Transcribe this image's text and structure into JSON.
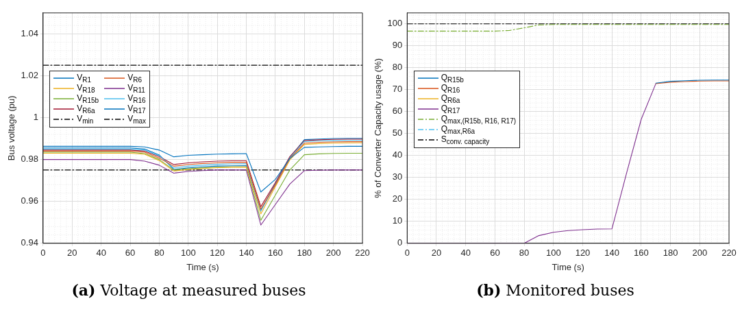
{
  "chart_data": [
    {
      "type": "line",
      "title": "(a) Voltage at measured buses",
      "xlabel": "Time (s)",
      "ylabel": "Bus voltage (pu)",
      "x": [
        0,
        10,
        20,
        30,
        40,
        50,
        60,
        70,
        80,
        90,
        100,
        110,
        120,
        130,
        140,
        150,
        160,
        170,
        180,
        190,
        200,
        210,
        220
      ],
      "xlim": [
        0,
        220
      ],
      "xticks": [
        0,
        20,
        40,
        60,
        80,
        100,
        120,
        140,
        160,
        180,
        200,
        220
      ],
      "ylim": [
        0.94,
        1.05
      ],
      "yticks": [
        0.94,
        0.96,
        0.98,
        1,
        1.02,
        1.04
      ],
      "grid": true,
      "legend": "left",
      "marker": "none",
      "series": [
        {
          "name": "V$_{R1}$",
          "color": "#0072bd",
          "values": [
            0.9863,
            0.9863,
            0.9863,
            0.9863,
            0.9863,
            0.9863,
            0.9863,
            0.986,
            0.9845,
            0.9813,
            0.982,
            0.9823,
            0.9826,
            0.9827,
            0.9828,
            0.9645,
            0.9705,
            0.9805,
            0.9858,
            0.986,
            0.9862,
            0.9863,
            0.9863
          ]
        },
        {
          "name": "V$_{R6}$",
          "color": "#d95319",
          "values": [
            0.984,
            0.984,
            0.984,
            0.984,
            0.984,
            0.984,
            0.984,
            0.9835,
            0.9807,
            0.9768,
            0.9776,
            0.9781,
            0.9784,
            0.9786,
            0.9786,
            0.9563,
            0.9678,
            0.9805,
            0.9878,
            0.9882,
            0.9884,
            0.9885,
            0.9885
          ]
        },
        {
          "name": "V$_{R18}$",
          "color": "#edb120",
          "values": [
            0.983,
            0.983,
            0.983,
            0.983,
            0.983,
            0.983,
            0.983,
            0.9825,
            0.9795,
            0.9745,
            0.9752,
            0.9757,
            0.9761,
            0.9763,
            0.9764,
            0.954,
            0.967,
            0.9798,
            0.9872,
            0.9876,
            0.9878,
            0.9879,
            0.988
          ]
        },
        {
          "name": "V$_{R11}$",
          "color": "#7e2f8e",
          "values": [
            0.98,
            0.98,
            0.98,
            0.98,
            0.98,
            0.98,
            0.98,
            0.9792,
            0.9773,
            0.9735,
            0.9743,
            0.9747,
            0.975,
            0.975,
            0.975,
            0.9487,
            0.9585,
            0.9683,
            0.9747,
            0.9749,
            0.975,
            0.975,
            0.975
          ]
        },
        {
          "name": "V$_{R15b}$",
          "color": "#77ac30",
          "values": [
            0.9835,
            0.9835,
            0.9835,
            0.9835,
            0.9835,
            0.9835,
            0.9835,
            0.9828,
            0.98,
            0.975,
            0.9756,
            0.976,
            0.9763,
            0.9765,
            0.9765,
            0.951,
            0.963,
            0.975,
            0.9823,
            0.9827,
            0.9829,
            0.983,
            0.983
          ]
        },
        {
          "name": "V$_{R16}$",
          "color": "#4dbeee",
          "values": [
            0.985,
            0.985,
            0.985,
            0.985,
            0.985,
            0.985,
            0.985,
            0.9845,
            0.9818,
            0.976,
            0.9768,
            0.9773,
            0.9777,
            0.9779,
            0.978,
            0.9553,
            0.968,
            0.9808,
            0.9886,
            0.9889,
            0.989,
            0.9891,
            0.9891
          ]
        },
        {
          "name": "V$_{R6a}$",
          "color": "#a2142f",
          "values": [
            0.9845,
            0.9845,
            0.9845,
            0.9845,
            0.9845,
            0.9845,
            0.9845,
            0.984,
            0.9814,
            0.9776,
            0.9784,
            0.9789,
            0.9792,
            0.9794,
            0.9794,
            0.9575,
            0.969,
            0.9814,
            0.989,
            0.9894,
            0.9896,
            0.9897,
            0.9897
          ]
        },
        {
          "name": "V$_{R17}$",
          "color": "#0072bd",
          "values": [
            0.9855,
            0.9855,
            0.9855,
            0.9855,
            0.9855,
            0.9855,
            0.9855,
            0.985,
            0.9822,
            0.9753,
            0.976,
            0.9765,
            0.9769,
            0.977,
            0.9771,
            0.9557,
            0.9685,
            0.981,
            0.9895,
            0.9898,
            0.99,
            0.9901,
            0.9901
          ]
        },
        {
          "name": "V$_{min}$",
          "color": "#000000",
          "line_style": "dashed",
          "values": [
            0.975,
            0.975,
            0.975,
            0.975,
            0.975,
            0.975,
            0.975,
            0.975,
            0.975,
            0.975,
            0.975,
            0.975,
            0.975,
            0.975,
            0.975,
            0.975,
            0.975,
            0.975,
            0.975,
            0.975,
            0.975,
            0.975,
            0.975
          ]
        },
        {
          "name": "V$_{max}$",
          "color": "#000000",
          "line_style": "dashed",
          "values": [
            1.025,
            1.025,
            1.025,
            1.025,
            1.025,
            1.025,
            1.025,
            1.025,
            1.025,
            1.025,
            1.025,
            1.025,
            1.025,
            1.025,
            1.025,
            1.025,
            1.025,
            1.025,
            1.025,
            1.025,
            1.025,
            1.025,
            1.025
          ]
        }
      ]
    },
    {
      "type": "line",
      "title": "(b) Monitored buses",
      "xlabel": "Time (s)",
      "ylabel": "% of Converter Capacity usage (%)",
      "x": [
        0,
        10,
        20,
        30,
        40,
        50,
        60,
        70,
        80,
        90,
        100,
        110,
        120,
        130,
        140,
        150,
        160,
        170,
        180,
        190,
        200,
        210,
        220
      ],
      "xlim": [
        0,
        220
      ],
      "xticks": [
        0,
        20,
        40,
        60,
        80,
        100,
        120,
        140,
        160,
        180,
        200,
        220
      ],
      "ylim": [
        0,
        105
      ],
      "yticks": [
        0,
        10,
        20,
        30,
        40,
        50,
        60,
        70,
        80,
        90,
        100
      ],
      "grid": true,
      "legend": "left",
      "marker": "none",
      "series": [
        {
          "name": "Q$_{R15b}$",
          "color": "#0072bd",
          "values": [
            null,
            null,
            null,
            null,
            null,
            null,
            null,
            null,
            null,
            null,
            null,
            null,
            null,
            null,
            null,
            null,
            null,
            73,
            73.8,
            74.1,
            74.3,
            74.4,
            74.4
          ]
        },
        {
          "name": "Q$_{R16}$",
          "color": "#d95319",
          "values": [
            null,
            null,
            null,
            null,
            null,
            null,
            null,
            null,
            null,
            null,
            null,
            null,
            null,
            null,
            null,
            null,
            null,
            72.8,
            73.4,
            73.7,
            73.9,
            74,
            74
          ]
        },
        {
          "name": "Q$_{R6a}$",
          "color": "#edb120",
          "values": [
            null,
            null,
            null,
            null,
            null,
            null,
            null,
            null,
            null,
            null,
            null,
            null,
            null,
            null,
            null,
            null,
            null,
            null,
            null,
            null,
            null,
            null,
            null
          ]
        },
        {
          "name": "Q$_{R17}$",
          "color": "#7e2f8e",
          "values": [
            0,
            0,
            0,
            0,
            0,
            0,
            0,
            0,
            0,
            3.5,
            5,
            5.8,
            6.2,
            6.5,
            6.6,
            32,
            56.5,
            72.8,
            null,
            null,
            null,
            null,
            null
          ]
        },
        {
          "name": "Q$_{max,(R15b, R16, R17)}$",
          "color": "#77ac30",
          "line_style": "dashed",
          "values": [
            96.7,
            96.7,
            96.7,
            96.7,
            96.7,
            96.7,
            96.7,
            97,
            98.2,
            99.5,
            99.7,
            99.7,
            99.7,
            99.7,
            99.7,
            99.7,
            99.7,
            99.7,
            99.7,
            99.7,
            99.7,
            99.7,
            99.7
          ]
        },
        {
          "name": "Q$_{max,R6a}$",
          "color": "#4dbeee",
          "line_style": "dashed",
          "values": [
            null,
            null,
            null,
            null,
            null,
            null,
            null,
            null,
            null,
            null,
            null,
            null,
            null,
            null,
            null,
            null,
            null,
            null,
            null,
            null,
            null,
            null,
            null
          ]
        },
        {
          "name": "S$_{conv. capacity}$",
          "color": "#000000",
          "line_style": "dashed",
          "values": [
            100,
            100,
            100,
            100,
            100,
            100,
            100,
            100,
            100,
            100,
            100,
            100,
            100,
            100,
            100,
            100,
            100,
            100,
            100,
            100,
            100,
            100,
            100
          ]
        }
      ]
    }
  ]
}
